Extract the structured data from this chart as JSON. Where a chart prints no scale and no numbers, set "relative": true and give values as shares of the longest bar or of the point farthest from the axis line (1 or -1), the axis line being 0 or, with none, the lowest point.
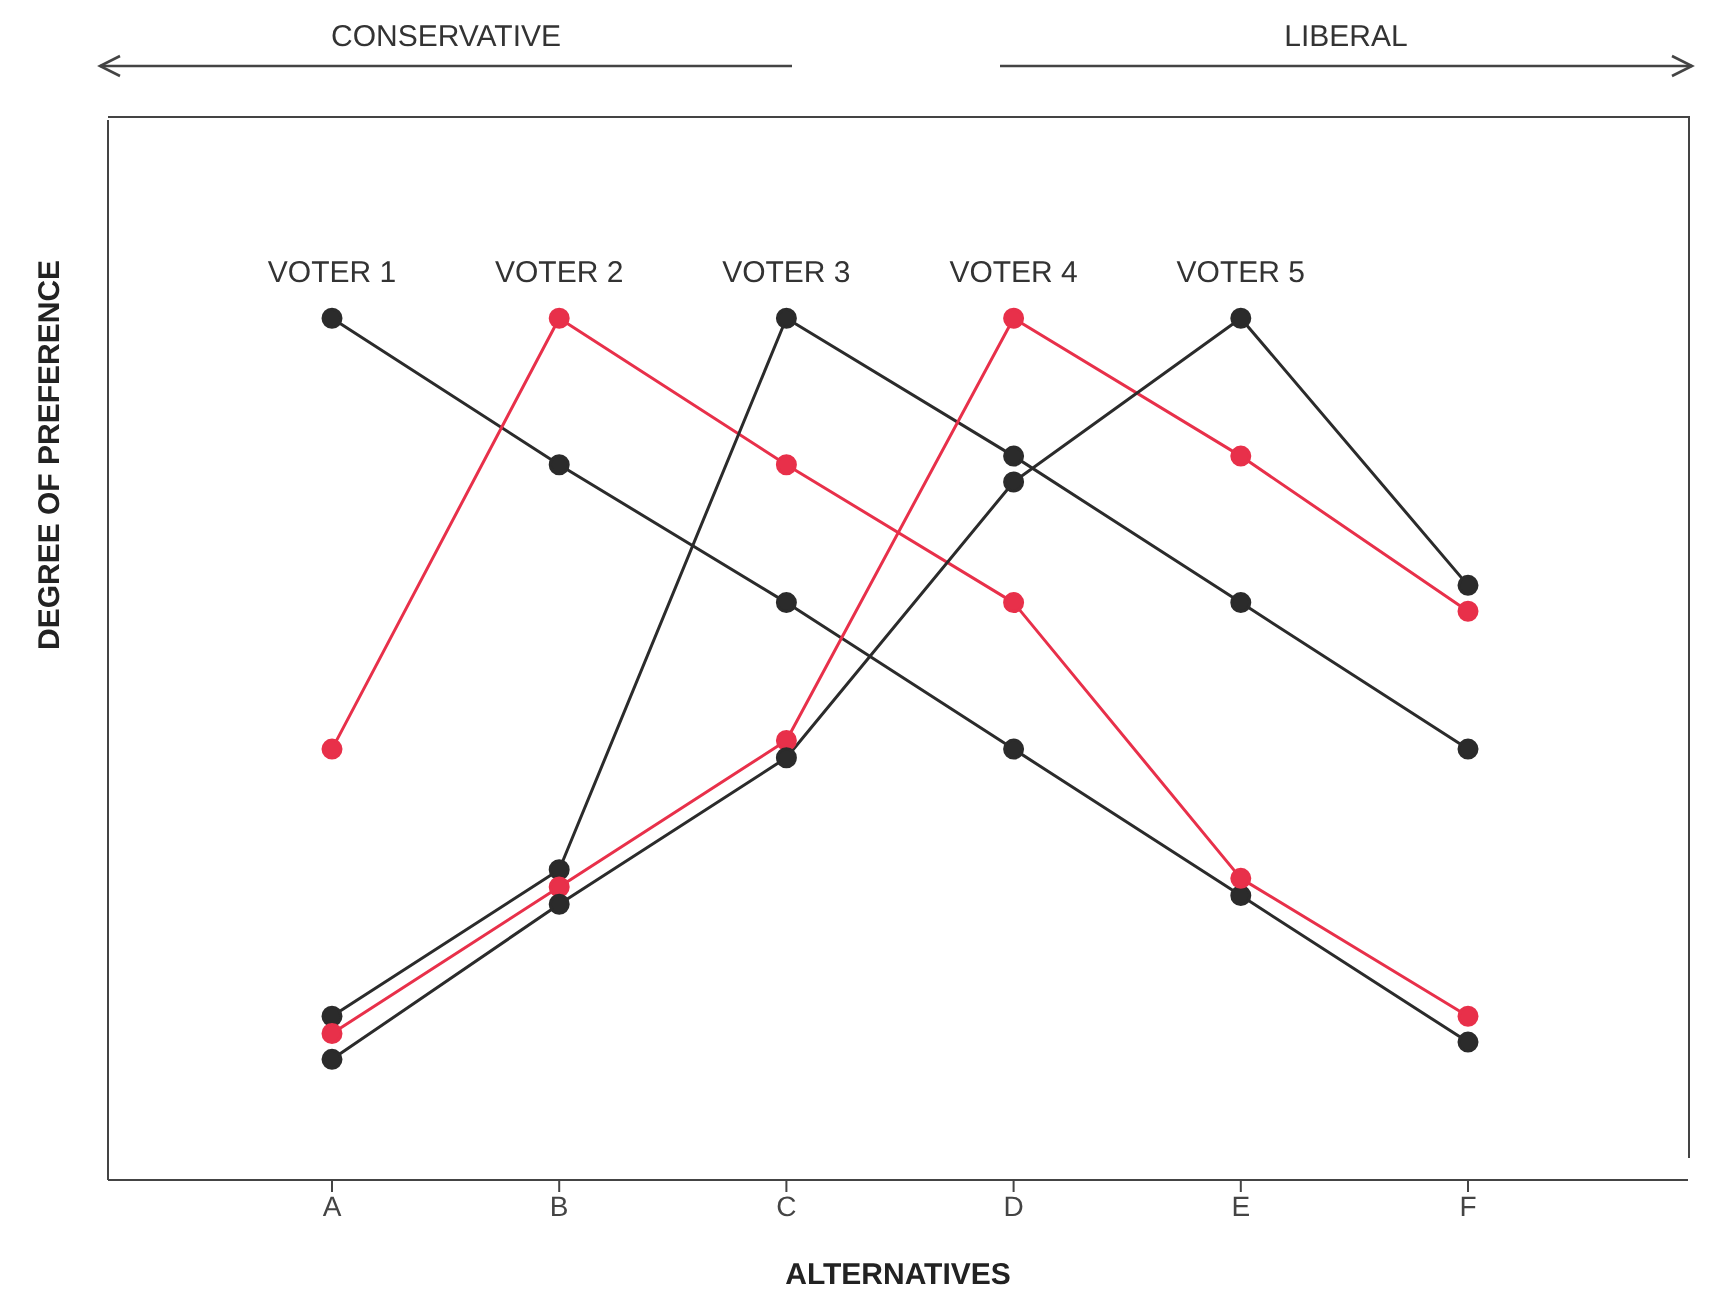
{
  "chart_data": {
    "type": "line",
    "relative": true,
    "xlabel": "ALTERNATIVES",
    "ylabel": "DEGREE OF PREFERENCE",
    "annotations": [
      "CONSERVATIVE",
      "LIBERAL"
    ],
    "categories": [
      "A",
      "B",
      "C",
      "D",
      "E",
      "F"
    ],
    "legend": false,
    "grid": false,
    "marker": "circle",
    "line_style": "solid",
    "series": [
      {
        "name": "VOTER 1",
        "color": "#2b2b2b",
        "values": [
          1,
          0.83,
          0.67,
          0.5,
          0.33,
          0.16
        ]
      },
      {
        "name": "VOTER 2",
        "color": "#e8304a",
        "values": [
          0.5,
          1,
          0.83,
          0.67,
          0.35,
          0.19
        ]
      },
      {
        "name": "VOTER 3",
        "color": "#2b2b2b",
        "values": [
          0.19,
          0.36,
          1,
          0.84,
          0.67,
          0.5
        ]
      },
      {
        "name": "VOTER 4",
        "color": "#e8304a",
        "values": [
          0.17,
          0.34,
          0.51,
          1,
          0.84,
          0.66
        ]
      },
      {
        "name": "VOTER 5",
        "color": "#2b2b2b",
        "values": [
          0.14,
          0.32,
          0.49,
          0.81,
          1,
          0.69
        ]
      }
    ]
  }
}
